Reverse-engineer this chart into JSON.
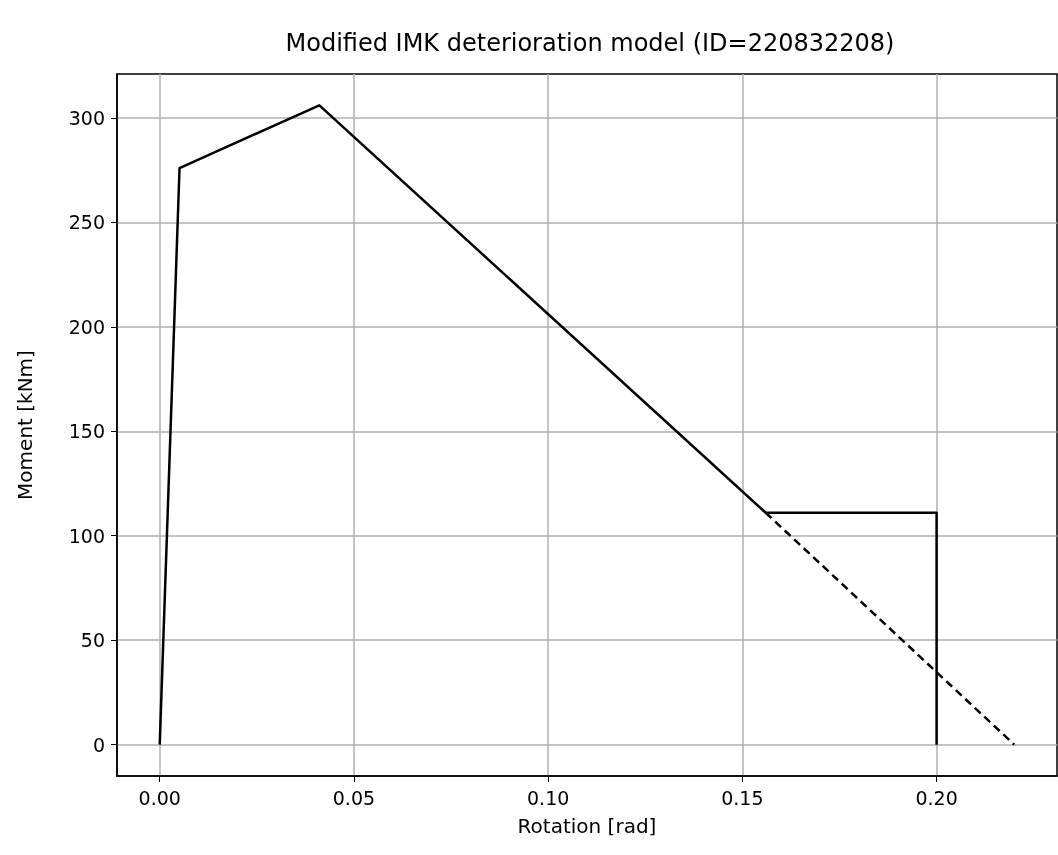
{
  "chart_data": {
    "type": "line",
    "title": "Modified IMK deterioration model (ID=220832208)",
    "xlabel": "Rotation [rad]",
    "ylabel": "Moment [kNm]",
    "series": [
      {
        "color": "#000000",
        "line_style": "solid",
        "x": [
          0,
          0.0051,
          0.0411,
          0.156,
          0.2,
          0.2
        ],
        "values": [
          0,
          276,
          306,
          111,
          111,
          0
        ]
      },
      {
        "color": "#000000",
        "line_style": "dashed",
        "x": [
          0.156,
          0.22
        ],
        "values": [
          111,
          0
        ]
      }
    ],
    "xlim": [
      -0.011,
      0.231
    ],
    "ylim": [
      -15,
      321
    ],
    "xticks": [
      {
        "value": 0,
        "label": "0.00"
      },
      {
        "value": 0.05,
        "label": "0.05"
      },
      {
        "value": 0.1,
        "label": "0.10"
      },
      {
        "value": 0.15,
        "label": "0.15"
      },
      {
        "value": 0.2,
        "label": "0.20"
      }
    ],
    "yticks": [
      0,
      50,
      100,
      150,
      200,
      250,
      300
    ],
    "grid": true,
    "marker": "none"
  }
}
